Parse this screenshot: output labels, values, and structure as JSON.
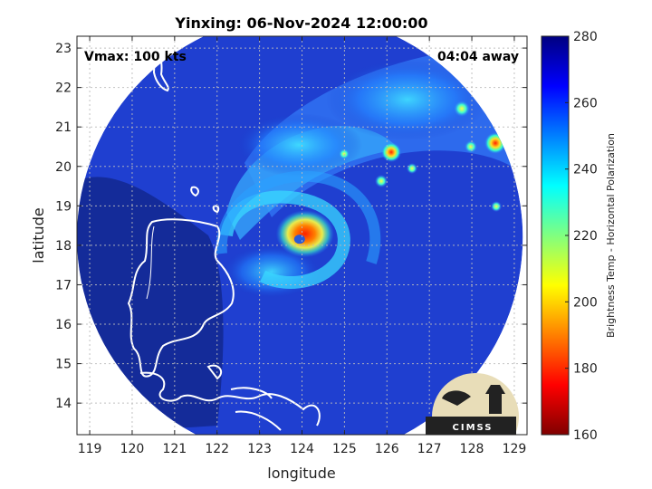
{
  "chart_data": {
    "type": "heatmap",
    "title": "Yinxing: 06-Nov-2024 12:00:00",
    "annotations": {
      "vmax": "Vmax: 100 kts",
      "away": "04:04 away"
    },
    "xlabel": "longitude",
    "ylabel": "latitude",
    "xlim": [
      118.7,
      129.3
    ],
    "ylim": [
      13.2,
      23.3
    ],
    "xticks": [
      119,
      120,
      121,
      122,
      123,
      124,
      125,
      126,
      127,
      128,
      129
    ],
    "yticks": [
      14,
      15,
      16,
      17,
      18,
      19,
      20,
      21,
      22,
      23
    ],
    "grid": true,
    "colorbar": {
      "label": "Brightness Temp - Horizontal Polarization",
      "range": [
        160,
        280
      ],
      "ticks": [
        160,
        180,
        200,
        220,
        240,
        260,
        280
      ],
      "colormap": "jet"
    },
    "swath": {
      "center_lon": 123.95,
      "center_lat": 18.2,
      "radius_deg": 5.25
    },
    "storm_center": {
      "lon": 123.9,
      "lat": 18.2,
      "min_tb": 165
    },
    "logo": "CIMSS",
    "colors": {
      "background_tb": "#1a38c8",
      "outside": "#ffffff"
    }
  }
}
